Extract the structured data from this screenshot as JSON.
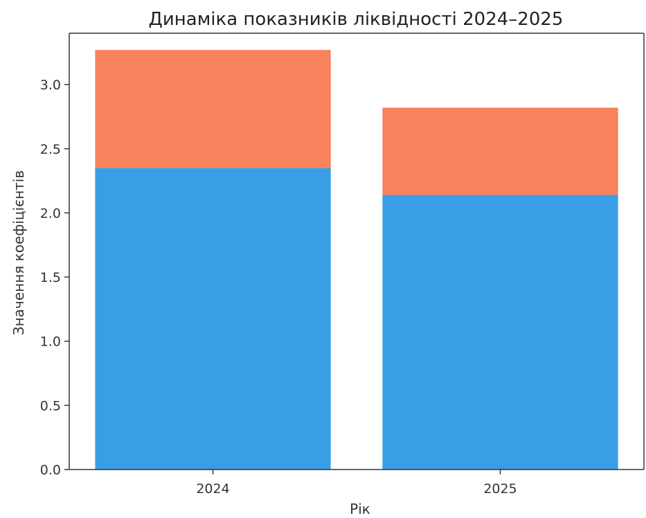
{
  "chart_data": {
    "type": "bar",
    "stacked": true,
    "title": "Динаміка показників ліквідності 2024–2025",
    "xlabel": "Рік",
    "ylabel": "Значення коефіцієнтів",
    "categories": [
      "2024",
      "2025"
    ],
    "ylim": [
      0,
      3.4
    ],
    "yticks": [
      0.0,
      0.5,
      1.0,
      1.5,
      2.0,
      2.5,
      3.0
    ],
    "ytick_labels": [
      "0.0",
      "0.5",
      "1.0",
      "1.5",
      "2.0",
      "2.5",
      "3.0"
    ],
    "grid": false,
    "legend": "none",
    "series": [
      {
        "values": [
          2.35,
          2.14
        ],
        "color": "#3a9ee6"
      },
      {
        "values": [
          0.92,
          0.68
        ],
        "color": "#f8825c"
      }
    ]
  }
}
